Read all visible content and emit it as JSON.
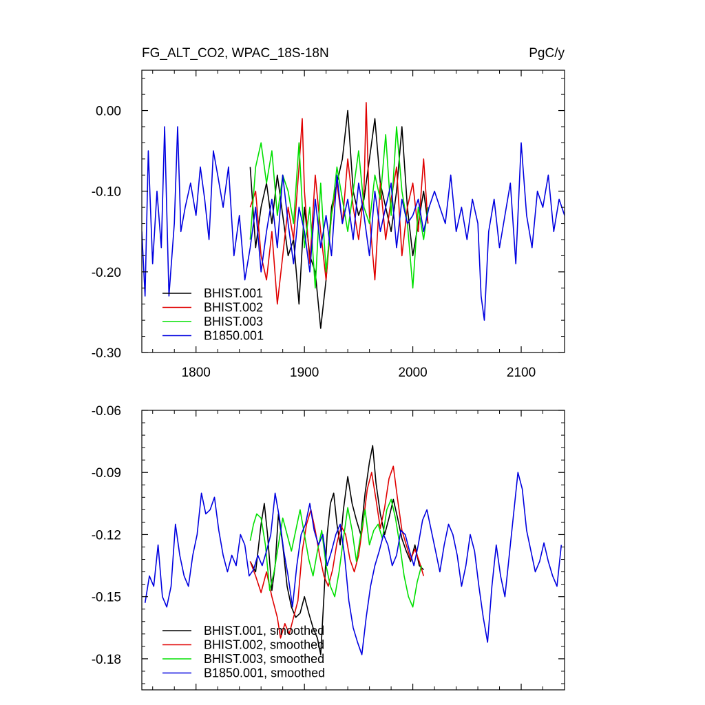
{
  "colors": {
    "BHIST.001": "#000000",
    "BHIST.002": "#e00000",
    "BHIST.003": "#00e000",
    "B1850.001": "#0000e0"
  },
  "chart_data": [
    {
      "type": "line",
      "title": "FG_ALT_CO2, WPAC_18S-18N",
      "units": "PgC/y",
      "xlim": [
        1750,
        2140
      ],
      "ylim": [
        -0.3,
        0.05
      ],
      "x_ticks": [
        1800,
        1900,
        2000,
        2100
      ],
      "x_tick_labels": [
        "1800",
        "1900",
        "2000",
        "2100"
      ],
      "y_ticks": [
        -0.3,
        -0.2,
        -0.1,
        0.0
      ],
      "y_tick_labels": [
        "-0.30",
        "-0.20",
        "-0.10",
        "0.00"
      ],
      "grid": false,
      "legend": "lower-left",
      "series": [
        {
          "name": "BHIST.001",
          "x": [
            1850,
            1855,
            1860,
            1865,
            1870,
            1875,
            1880,
            1885,
            1890,
            1895,
            1900,
            1905,
            1910,
            1915,
            1920,
            1925,
            1930,
            1935,
            1940,
            1945,
            1950,
            1955,
            1960,
            1965,
            1970,
            1975,
            1980,
            1985,
            1990,
            1995,
            2000,
            2005,
            2010,
            2014
          ],
          "values": [
            -0.07,
            -0.17,
            -0.12,
            -0.09,
            -0.14,
            -0.08,
            -0.13,
            -0.18,
            -0.16,
            -0.24,
            -0.12,
            -0.18,
            -0.2,
            -0.27,
            -0.21,
            -0.12,
            -0.09,
            -0.06,
            0.0,
            -0.1,
            -0.13,
            -0.11,
            -0.06,
            -0.01,
            -0.09,
            -0.12,
            -0.15,
            -0.1,
            -0.02,
            -0.12,
            -0.18,
            -0.14,
            -0.1,
            -0.14
          ]
        },
        {
          "name": "BHIST.002",
          "x": [
            1850,
            1855,
            1860,
            1865,
            1870,
            1875,
            1880,
            1885,
            1890,
            1895,
            1898,
            1900,
            1905,
            1910,
            1915,
            1920,
            1925,
            1930,
            1935,
            1940,
            1945,
            1950,
            1955,
            1957,
            1960,
            1965,
            1970,
            1975,
            1980,
            1985,
            1990,
            1995,
            2000,
            2005,
            2010,
            2014
          ],
          "values": [
            -0.12,
            -0.1,
            -0.18,
            -0.21,
            -0.15,
            -0.24,
            -0.18,
            -0.12,
            -0.16,
            -0.07,
            -0.01,
            -0.1,
            -0.19,
            -0.08,
            -0.15,
            -0.21,
            -0.13,
            -0.09,
            -0.14,
            -0.06,
            -0.12,
            -0.16,
            -0.1,
            0.01,
            -0.13,
            -0.21,
            -0.09,
            -0.16,
            -0.11,
            -0.07,
            -0.18,
            -0.12,
            -0.09,
            -0.15,
            -0.06,
            -0.14
          ]
        },
        {
          "name": "BHIST.003",
          "x": [
            1850,
            1855,
            1860,
            1865,
            1870,
            1875,
            1880,
            1885,
            1890,
            1895,
            1900,
            1905,
            1910,
            1915,
            1920,
            1925,
            1930,
            1935,
            1940,
            1945,
            1950,
            1955,
            1960,
            1965,
            1970,
            1975,
            1980,
            1985,
            1990,
            1995,
            2000,
            2005,
            2010,
            2014
          ],
          "values": [
            -0.16,
            -0.07,
            -0.04,
            -0.09,
            -0.05,
            -0.13,
            -0.08,
            -0.1,
            -0.14,
            -0.04,
            -0.17,
            -0.12,
            -0.22,
            -0.09,
            -0.2,
            -0.13,
            -0.07,
            -0.11,
            -0.15,
            -0.1,
            -0.05,
            -0.12,
            -0.14,
            -0.08,
            -0.11,
            -0.03,
            -0.13,
            -0.02,
            -0.1,
            -0.14,
            -0.22,
            -0.12,
            -0.16,
            -0.12
          ]
        },
        {
          "name": "B1850.001",
          "x": [
            1750,
            1753,
            1756,
            1760,
            1764,
            1768,
            1771,
            1775,
            1780,
            1783,
            1786,
            1790,
            1795,
            1800,
            1804,
            1808,
            1812,
            1816,
            1820,
            1825,
            1830,
            1835,
            1840,
            1845,
            1850,
            1855,
            1860,
            1865,
            1870,
            1875,
            1880,
            1885,
            1890,
            1895,
            1900,
            1905,
            1910,
            1915,
            1920,
            1925,
            1930,
            1935,
            1940,
            1945,
            1950,
            1955,
            1960,
            1965,
            1970,
            1975,
            1980,
            1985,
            1990,
            1995,
            2000,
            2005,
            2010,
            2015,
            2020,
            2025,
            2030,
            2035,
            2040,
            2045,
            2050,
            2055,
            2060,
            2063,
            2066,
            2070,
            2075,
            2080,
            2085,
            2090,
            2095,
            2100,
            2105,
            2110,
            2115,
            2120,
            2125,
            2130,
            2135,
            2140
          ],
          "values": [
            -0.15,
            -0.23,
            -0.05,
            -0.19,
            -0.1,
            -0.17,
            -0.02,
            -0.23,
            -0.14,
            -0.02,
            -0.15,
            -0.12,
            -0.09,
            -0.13,
            -0.07,
            -0.11,
            -0.16,
            -0.05,
            -0.08,
            -0.12,
            -0.07,
            -0.18,
            -0.13,
            -0.21,
            -0.17,
            -0.12,
            -0.2,
            -0.15,
            -0.11,
            -0.17,
            -0.08,
            -0.14,
            -0.19,
            -0.12,
            -0.15,
            -0.2,
            -0.11,
            -0.17,
            -0.13,
            -0.18,
            -0.08,
            -0.14,
            -0.11,
            -0.16,
            -0.09,
            -0.13,
            -0.18,
            -0.1,
            -0.15,
            -0.12,
            -0.09,
            -0.17,
            -0.11,
            -0.14,
            -0.13,
            -0.11,
            -0.15,
            -0.12,
            -0.1,
            -0.12,
            -0.14,
            -0.08,
            -0.15,
            -0.12,
            -0.16,
            -0.11,
            -0.14,
            -0.23,
            -0.26,
            -0.15,
            -0.11,
            -0.17,
            -0.13,
            -0.09,
            -0.19,
            -0.04,
            -0.13,
            -0.17,
            -0.1,
            -0.12,
            -0.08,
            -0.15,
            -0.11,
            -0.13
          ]
        }
      ]
    },
    {
      "type": "line",
      "xlim": [
        1750,
        2140
      ],
      "ylim": [
        -0.195,
        -0.06
      ],
      "x_ticks": [
        1800,
        1900,
        2000,
        2100
      ],
      "y_ticks": [
        -0.18,
        -0.15,
        -0.12,
        -0.09,
        -0.06
      ],
      "y_tick_labels": [
        "-0.18",
        "-0.15",
        "-0.12",
        "-0.09",
        "-0.06"
      ],
      "grid": false,
      "legend": "lower-left",
      "series": [
        {
          "name": "BHIST.001, smoothed",
          "x": [
            1850,
            1855,
            1860,
            1863,
            1866,
            1870,
            1873,
            1876,
            1880,
            1884,
            1888,
            1892,
            1896,
            1900,
            1904,
            1908,
            1912,
            1915,
            1918,
            1921,
            1924,
            1927,
            1930,
            1933,
            1936,
            1940,
            1944,
            1948,
            1952,
            1956,
            1960,
            1963,
            1966,
            1970,
            1974,
            1978,
            1982,
            1986,
            1990,
            1994,
            1998,
            2002,
            2006,
            2010
          ],
          "values": [
            -0.133,
            -0.138,
            -0.115,
            -0.105,
            -0.12,
            -0.147,
            -0.135,
            -0.11,
            -0.125,
            -0.145,
            -0.155,
            -0.16,
            -0.158,
            -0.15,
            -0.158,
            -0.165,
            -0.17,
            -0.178,
            -0.15,
            -0.12,
            -0.105,
            -0.1,
            -0.115,
            -0.125,
            -0.108,
            -0.092,
            -0.105,
            -0.113,
            -0.12,
            -0.1,
            -0.085,
            -0.077,
            -0.095,
            -0.11,
            -0.12,
            -0.112,
            -0.103,
            -0.112,
            -0.122,
            -0.128,
            -0.133,
            -0.125,
            -0.135,
            -0.137
          ]
        },
        {
          "name": "BHIST.002, smoothed",
          "x": [
            1850,
            1855,
            1860,
            1865,
            1870,
            1875,
            1878,
            1882,
            1886,
            1890,
            1894,
            1898,
            1902,
            1906,
            1910,
            1914,
            1918,
            1922,
            1926,
            1930,
            1934,
            1938,
            1942,
            1946,
            1950,
            1954,
            1958,
            1962,
            1966,
            1970,
            1974,
            1978,
            1982,
            1986,
            1990,
            1994,
            1998,
            2002,
            2006,
            2010
          ],
          "values": [
            -0.133,
            -0.14,
            -0.148,
            -0.138,
            -0.15,
            -0.16,
            -0.17,
            -0.163,
            -0.168,
            -0.16,
            -0.152,
            -0.128,
            -0.115,
            -0.108,
            -0.118,
            -0.13,
            -0.14,
            -0.145,
            -0.137,
            -0.124,
            -0.116,
            -0.12,
            -0.132,
            -0.138,
            -0.13,
            -0.115,
            -0.098,
            -0.09,
            -0.103,
            -0.117,
            -0.107,
            -0.093,
            -0.087,
            -0.103,
            -0.118,
            -0.125,
            -0.132,
            -0.127,
            -0.133,
            -0.14
          ]
        },
        {
          "name": "BHIST.003, smoothed",
          "x": [
            1850,
            1853,
            1856,
            1860,
            1864,
            1868,
            1872,
            1876,
            1880,
            1884,
            1888,
            1892,
            1896,
            1900,
            1904,
            1908,
            1912,
            1916,
            1920,
            1924,
            1928,
            1932,
            1936,
            1940,
            1944,
            1948,
            1952,
            1956,
            1960,
            1964,
            1968,
            1972,
            1976,
            1980,
            1984,
            1988,
            1992,
            1996,
            2000,
            2004,
            2008
          ],
          "values": [
            -0.123,
            -0.115,
            -0.11,
            -0.112,
            -0.125,
            -0.147,
            -0.138,
            -0.125,
            -0.112,
            -0.12,
            -0.128,
            -0.118,
            -0.108,
            -0.12,
            -0.132,
            -0.14,
            -0.128,
            -0.118,
            -0.135,
            -0.145,
            -0.15,
            -0.138,
            -0.122,
            -0.107,
            -0.118,
            -0.133,
            -0.12,
            -0.108,
            -0.125,
            -0.118,
            -0.115,
            -0.122,
            -0.108,
            -0.103,
            -0.112,
            -0.125,
            -0.14,
            -0.15,
            -0.155,
            -0.143,
            -0.135
          ]
        },
        {
          "name": "B1850.001, smoothed",
          "x": [
            1753,
            1757,
            1761,
            1765,
            1769,
            1773,
            1777,
            1781,
            1785,
            1789,
            1793,
            1797,
            1801,
            1805,
            1809,
            1813,
            1817,
            1821,
            1825,
            1829,
            1833,
            1837,
            1841,
            1845,
            1849,
            1853,
            1857,
            1861,
            1865,
            1869,
            1873,
            1877,
            1881,
            1885,
            1889,
            1893,
            1897,
            1901,
            1905,
            1909,
            1913,
            1917,
            1921,
            1925,
            1929,
            1933,
            1937,
            1941,
            1945,
            1949,
            1953,
            1957,
            1961,
            1965,
            1969,
            1973,
            1977,
            1981,
            1985,
            1989,
            1993,
            1997,
            2001,
            2005,
            2009,
            2013,
            2017,
            2021,
            2025,
            2029,
            2033,
            2037,
            2041,
            2045,
            2049,
            2053,
            2057,
            2061,
            2065,
            2069,
            2073,
            2077,
            2081,
            2085,
            2089,
            2093,
            2097,
            2101,
            2105,
            2109,
            2113,
            2117,
            2121,
            2125,
            2129,
            2133,
            2137
          ],
          "values": [
            -0.153,
            -0.14,
            -0.145,
            -0.125,
            -0.15,
            -0.155,
            -0.145,
            -0.115,
            -0.13,
            -0.14,
            -0.145,
            -0.13,
            -0.12,
            -0.1,
            -0.11,
            -0.108,
            -0.102,
            -0.118,
            -0.13,
            -0.138,
            -0.13,
            -0.135,
            -0.12,
            -0.125,
            -0.14,
            -0.137,
            -0.13,
            -0.135,
            -0.128,
            -0.12,
            -0.1,
            -0.112,
            -0.128,
            -0.14,
            -0.155,
            -0.135,
            -0.12,
            -0.115,
            -0.105,
            -0.118,
            -0.125,
            -0.12,
            -0.135,
            -0.128,
            -0.12,
            -0.115,
            -0.13,
            -0.152,
            -0.165,
            -0.172,
            -0.178,
            -0.16,
            -0.145,
            -0.135,
            -0.128,
            -0.12,
            -0.125,
            -0.135,
            -0.13,
            -0.118,
            -0.12,
            -0.128,
            -0.135,
            -0.125,
            -0.113,
            -0.108,
            -0.118,
            -0.128,
            -0.138,
            -0.125,
            -0.115,
            -0.12,
            -0.13,
            -0.145,
            -0.135,
            -0.12,
            -0.128,
            -0.145,
            -0.16,
            -0.172,
            -0.145,
            -0.125,
            -0.14,
            -0.15,
            -0.13,
            -0.11,
            -0.09,
            -0.098,
            -0.118,
            -0.128,
            -0.138,
            -0.133,
            -0.124,
            -0.133,
            -0.14,
            -0.145,
            -0.125
          ]
        }
      ]
    }
  ]
}
